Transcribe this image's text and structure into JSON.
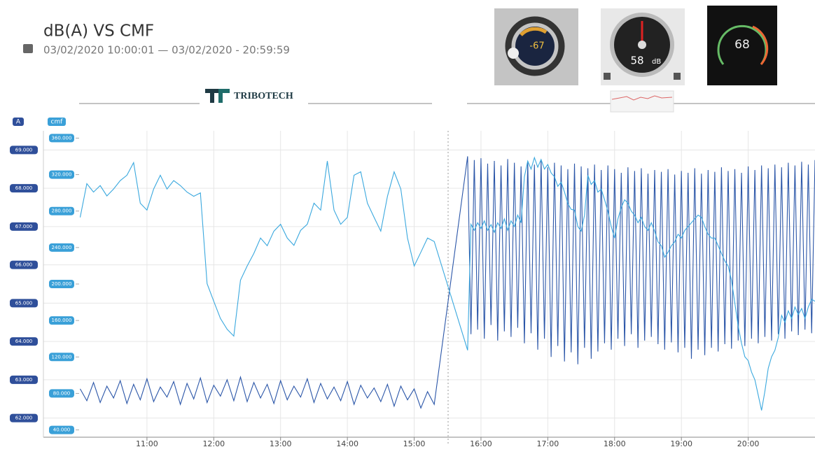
{
  "header": {
    "title": "dB(A) VS CMF",
    "subtitle": "03/02/2020 10:00:01 — 03/02/2020 - 20:59:59",
    "logo": "TRIBOTECH"
  },
  "widgets": [
    {
      "value": "-67"
    },
    {
      "value": "58",
      "unit": "dB"
    },
    {
      "value": "68"
    }
  ],
  "chart_data": {
    "type": "line",
    "ylabel": "A",
    "y2label": "cmf",
    "xlim": [
      9.45,
      21.0
    ],
    "xticks": [
      {
        "value": 11,
        "label": "11:00"
      },
      {
        "value": 12,
        "label": "12:00"
      },
      {
        "value": 13,
        "label": "13:00"
      },
      {
        "value": 14,
        "label": "14:00"
      },
      {
        "value": 15,
        "label": "15:00"
      },
      {
        "value": 16,
        "label": "16:00"
      },
      {
        "value": 17,
        "label": "17:00"
      },
      {
        "value": 18,
        "label": "18:00"
      },
      {
        "value": 19,
        "label": "19:00"
      },
      {
        "value": 20,
        "label": "20:00"
      }
    ],
    "ylim": [
      61.5,
      69.5
    ],
    "yticks": [
      {
        "value": 69,
        "label": "69.000"
      },
      {
        "value": 68,
        "label": "68.000"
      },
      {
        "value": 67,
        "label": "67.000"
      },
      {
        "value": 66,
        "label": "66.000"
      },
      {
        "value": 65,
        "label": "65.000"
      },
      {
        "value": 64,
        "label": "64.000"
      },
      {
        "value": 63,
        "label": "63.000"
      },
      {
        "value": 62,
        "label": "62.000"
      }
    ],
    "y2lim": [
      32,
      368
    ],
    "y2ticks": [
      {
        "value": 360,
        "label": "360.000"
      },
      {
        "value": 320,
        "label": "320.000"
      },
      {
        "value": 280,
        "label": "280.000"
      },
      {
        "value": 240,
        "label": "240.000"
      },
      {
        "value": 200,
        "label": "200.000"
      },
      {
        "value": 160,
        "label": "160.000"
      },
      {
        "value": 120,
        "label": "120.000"
      },
      {
        "value": 80,
        "label": "80.000"
      },
      {
        "value": 40,
        "label": "40.000"
      }
    ],
    "grid": true,
    "x": [
      10.0,
      10.1,
      10.2,
      10.3,
      10.4,
      10.5,
      10.6,
      10.7,
      10.8,
      10.9,
      11.0,
      11.1,
      11.2,
      11.3,
      11.4,
      11.5,
      11.6,
      11.7,
      11.8,
      11.9,
      12.0,
      12.1,
      12.2,
      12.3,
      12.4,
      12.5,
      12.6,
      12.7,
      12.8,
      12.9,
      13.0,
      13.1,
      13.2,
      13.3,
      13.4,
      13.5,
      13.6,
      13.7,
      13.8,
      13.9,
      14.0,
      14.1,
      14.2,
      14.3,
      14.4,
      14.5,
      14.6,
      14.7,
      14.8,
      14.9,
      15.0,
      15.1,
      15.2,
      15.3,
      15.8,
      15.85,
      15.9,
      15.95,
      16.0,
      16.05,
      16.1,
      16.15,
      16.2,
      16.25,
      16.3,
      16.35,
      16.4,
      16.45,
      16.5,
      16.55,
      16.6,
      16.65,
      16.7,
      16.75,
      16.8,
      16.85,
      16.9,
      16.95,
      17.0,
      17.05,
      17.1,
      17.15,
      17.2,
      17.25,
      17.3,
      17.35,
      17.4,
      17.45,
      17.5,
      17.55,
      17.6,
      17.65,
      17.7,
      17.75,
      17.8,
      17.85,
      17.9,
      17.95,
      18.0,
      18.05,
      18.1,
      18.15,
      18.2,
      18.25,
      18.3,
      18.35,
      18.4,
      18.45,
      18.5,
      18.55,
      18.6,
      18.65,
      18.7,
      18.75,
      18.8,
      18.85,
      18.9,
      18.95,
      19.0,
      19.05,
      19.1,
      19.15,
      19.2,
      19.25,
      19.3,
      19.35,
      19.4,
      19.45,
      19.5,
      19.55,
      19.6,
      19.65,
      19.7,
      19.75,
      19.8,
      19.85,
      19.9,
      19.95,
      20.0,
      20.05,
      20.1,
      20.15,
      20.2,
      20.25,
      20.3,
      20.35,
      20.4,
      20.45,
      20.5,
      20.55,
      20.6,
      20.65,
      20.7,
      20.75,
      20.8,
      20.85,
      20.9,
      20.95,
      21.0
    ],
    "series": [
      {
        "color": "#2b56a8",
        "axis": "y2",
        "values": [
          85,
          72,
          92,
          70,
          88,
          75,
          94,
          69,
          90,
          73,
          96,
          71,
          87,
          76,
          93,
          68,
          91,
          74,
          97,
          70,
          89,
          77,
          95,
          72,
          98,
          71,
          92,
          75,
          90,
          69,
          94,
          73,
          88,
          76,
          96,
          70,
          91,
          74,
          87,
          72,
          93,
          68,
          89,
          75,
          86,
          71,
          90,
          66,
          88,
          73,
          85,
          64,
          82,
          68,
          340,
          145,
          336,
          150,
          338,
          140,
          332,
          155,
          335,
          138,
          330,
          148,
          337,
          142,
          333,
          152,
          329,
          135,
          334,
          146,
          331,
          128,
          336,
          140,
          328,
          120,
          333,
          132,
          330,
          115,
          326,
          125,
          332,
          112,
          329,
          130,
          327,
          118,
          331,
          126,
          325,
          135,
          330,
          128,
          326,
          140,
          322,
          132,
          328,
          145,
          324,
          130,
          327,
          138,
          321,
          142,
          325,
          134,
          323,
          128,
          326,
          136,
          320,
          125,
          324,
          130,
          322,
          118,
          327,
          128,
          321,
          122,
          325,
          130,
          323,
          126,
          328,
          134,
          324,
          129,
          326,
          138,
          322,
          132,
          329,
          140,
          325,
          135,
          330,
          142,
          327,
          138,
          331,
          145,
          328,
          140,
          333,
          148,
          330,
          144,
          334,
          150,
          331,
          146,
          336
        ]
      },
      {
        "color": "#3aa8de",
        "values": [
          67.24,
          68.12,
          67.9,
          68.07,
          67.8,
          67.98,
          68.2,
          68.34,
          68.67,
          67.61,
          67.43,
          67.98,
          68.34,
          67.98,
          68.2,
          68.07,
          67.9,
          67.79,
          67.88,
          65.51,
          65.05,
          64.6,
          64.32,
          64.14,
          65.6,
          65.97,
          66.3,
          66.7,
          66.5,
          66.88,
          67.06,
          66.7,
          66.51,
          66.9,
          67.06,
          67.61,
          67.43,
          68.71,
          67.43,
          67.06,
          67.24,
          68.34,
          68.43,
          67.61,
          67.24,
          66.88,
          67.79,
          68.43,
          67.98,
          66.7,
          65.97,
          66.33,
          66.7,
          66.61,
          63.77,
          67.06,
          66.9,
          67.1,
          66.95,
          67.15,
          66.9,
          67.05,
          66.85,
          67.1,
          66.95,
          67.2,
          66.9,
          67.15,
          67.0,
          67.3,
          67.1,
          68.3,
          68.71,
          68.5,
          68.8,
          68.55,
          68.75,
          68.5,
          68.62,
          68.4,
          68.3,
          68.05,
          68.16,
          67.9,
          67.6,
          67.45,
          67.43,
          67.0,
          66.88,
          67.3,
          68.34,
          68.1,
          68.2,
          67.9,
          67.98,
          67.7,
          67.4,
          67.0,
          66.7,
          67.2,
          67.5,
          67.7,
          67.61,
          67.4,
          67.3,
          67.1,
          67.24,
          67.0,
          66.9,
          67.1,
          66.88,
          66.6,
          66.5,
          66.2,
          66.33,
          66.5,
          66.6,
          66.8,
          66.7,
          66.9,
          67.0,
          67.1,
          67.2,
          67.3,
          67.24,
          67.0,
          66.8,
          66.7,
          66.7,
          66.5,
          66.3,
          66.1,
          65.97,
          65.6,
          65.0,
          64.4,
          63.95,
          63.6,
          63.5,
          63.2,
          63.0,
          62.6,
          62.2,
          62.7,
          63.3,
          63.6,
          63.77,
          64.1,
          64.68,
          64.5,
          64.8,
          64.6,
          64.9,
          64.7,
          64.86,
          64.6,
          64.9,
          65.1,
          65.05
        ]
      }
    ]
  }
}
